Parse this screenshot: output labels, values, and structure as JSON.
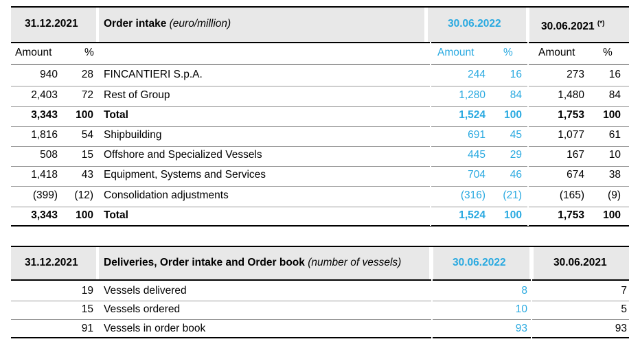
{
  "table1": {
    "h_prev": "31.12.2021",
    "h_title": "Order intake",
    "h_unit": "(euro/million)",
    "h_cur": "30.06.2022",
    "h_last": "30.06.2021",
    "h_last_mark": "(*)",
    "sub": {
      "amount": "Amount",
      "pct": "%"
    },
    "rows": [
      {
        "a1": "940",
        "p1": "28",
        "label": "FINCANTIERI S.p.A.",
        "a2": "244",
        "p2": "16",
        "a3": "273",
        "p3": "16"
      },
      {
        "a1": "2,403",
        "p1": "72",
        "label": "Rest of Group",
        "a2": "1,280",
        "p2": "84",
        "a3": "1,480",
        "p3": "84"
      },
      {
        "a1": "3,343",
        "p1": "100",
        "label": "Total",
        "a2": "1,524",
        "p2": "100",
        "a3": "1,753",
        "p3": "100"
      },
      {
        "a1": "1,816",
        "p1": "54",
        "label": "Shipbuilding",
        "a2": "691",
        "p2": "45",
        "a3": "1,077",
        "p3": "61"
      },
      {
        "a1": "508",
        "p1": "15",
        "label": "Offshore and Specialized Vessels",
        "a2": "445",
        "p2": "29",
        "a3": "167",
        "p3": "10"
      },
      {
        "a1": "1,418",
        "p1": "43",
        "label": "Equipment, Systems and Services",
        "a2": "704",
        "p2": "46",
        "a3": "674",
        "p3": "38"
      },
      {
        "a1": "(399)",
        "p1": "(12)",
        "label": "Consolidation adjustments",
        "a2": "(316)",
        "p2": "(21)",
        "a3": "(165)",
        "p3": "(9)"
      },
      {
        "a1": "3,343",
        "p1": "100",
        "label": "Total",
        "a2": "1,524",
        "p2": "100",
        "a3": "1,753",
        "p3": "100"
      }
    ]
  },
  "table2": {
    "h_prev": "31.12.2021",
    "h_title": "Deliveries, Order intake and Order book",
    "h_unit": "(number of vessels)",
    "h_cur": "30.06.2022",
    "h_last": "30.06.2021",
    "rows": [
      {
        "v1": "19",
        "label": "Vessels delivered",
        "v2": "8",
        "v3": "7"
      },
      {
        "v1": "15",
        "label": "Vessels ordered",
        "v2": "10",
        "v3": "5"
      },
      {
        "v1": "91",
        "label": "Vessels in order book",
        "v2": "93",
        "v3": "93"
      }
    ]
  }
}
